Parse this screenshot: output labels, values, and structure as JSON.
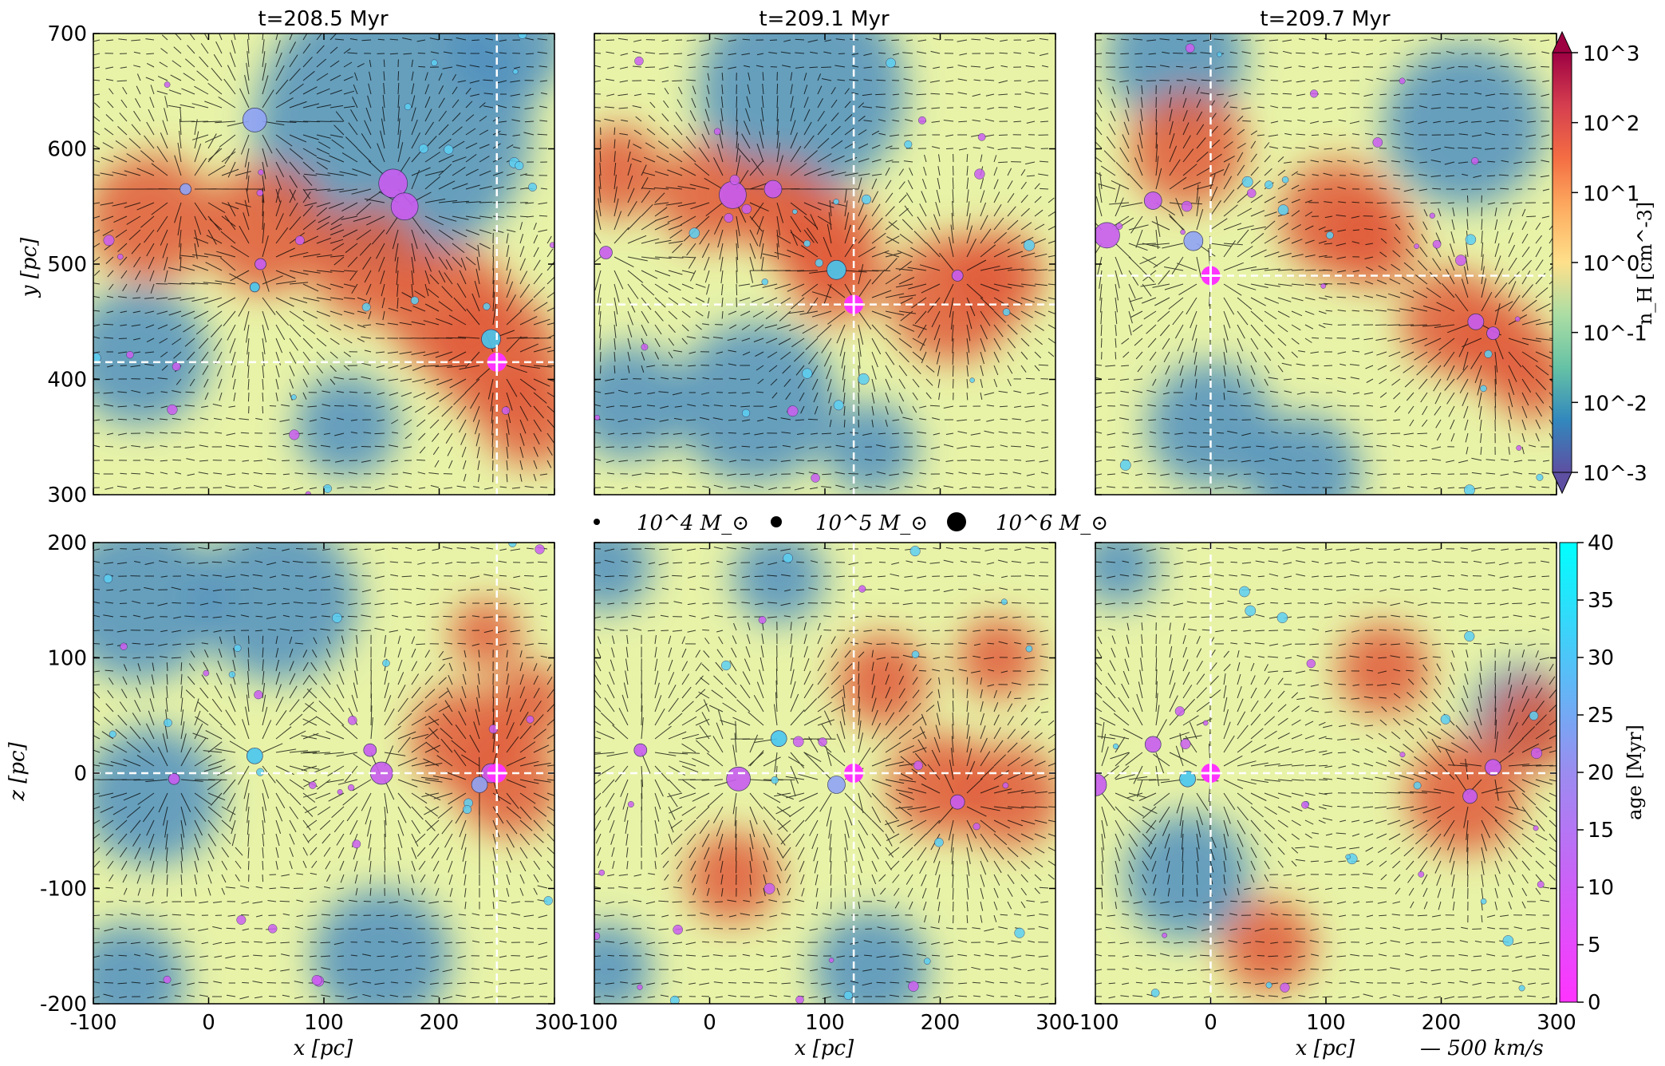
{
  "figure": {
    "panel_titles": [
      "t=208.5 Myr",
      "t=209.1 Myr",
      "t=209.7 Myr"
    ],
    "x_label": "x [pc]",
    "y_label_top": "y [pc]",
    "y_label_bottom": "z [pc]",
    "mass_legend": [
      "10^4 M_⊙",
      "10^5 M_⊙",
      "10^6 M_⊙"
    ],
    "velocity_scale_label": "— 500 km/s",
    "density_colorbar": {
      "label": "n_H [cm^-3]",
      "ticks": [
        "10^-3",
        "10^-2",
        "10^-1",
        "10^0",
        "10^1",
        "10^2",
        "10^3"
      ],
      "colormap": "Spectral_r",
      "colors": [
        "#5e4fa2",
        "#3288bd",
        "#66c2a5",
        "#abdda4",
        "#fee08b",
        "#fdae61",
        "#f46d43",
        "#d53e4f",
        "#9e0142"
      ]
    },
    "age_colorbar": {
      "label": "age [Myr]",
      "ticks": [
        "0",
        "5",
        "10",
        "15",
        "20",
        "25",
        "30",
        "35",
        "40"
      ],
      "colors": [
        "#ff33ff",
        "#00ffff"
      ]
    },
    "top_x_ticks": [
      "-100",
      "0",
      "100",
      "200",
      "300"
    ],
    "top_y_ticks": [
      "300",
      "400",
      "500",
      "600",
      "700"
    ],
    "bottom_y_ticks": [
      "-200",
      "-100",
      "0",
      "100",
      "200"
    ],
    "crosshair_color": "#ffffff"
  },
  "chart_data": [
    {
      "type": "heatmap",
      "row": "top",
      "title": "t=208.5 Myr",
      "xlabel": "x [pc]",
      "ylabel": "y [pc]",
      "xlim": [
        -100,
        300
      ],
      "ylim": [
        300,
        700
      ],
      "crosshair": [
        250,
        415
      ],
      "dense_regions": [
        [
          -50,
          540,
          55
        ],
        [
          50,
          530,
          55
        ],
        [
          140,
          500,
          50
        ],
        [
          210,
          460,
          55
        ],
        [
          250,
          420,
          55
        ],
        [
          280,
          370,
          45
        ]
      ],
      "sparse_regions": [
        [
          160,
          620,
          120
        ],
        [
          -60,
          420,
          60
        ],
        [
          120,
          360,
          45
        ],
        [
          260,
          690,
          50
        ]
      ],
      "clusters": [
        [
          160,
          570,
          30
        ],
        [
          170,
          550,
          28
        ],
        [
          40,
          625,
          24
        ],
        [
          245,
          435,
          18
        ],
        [
          250,
          415,
          14
        ],
        [
          45,
          500,
          8
        ],
        [
          -20,
          565,
          8
        ],
        [
          40,
          480,
          6
        ]
      ]
    },
    {
      "type": "heatmap",
      "row": "top",
      "title": "t=209.1 Myr",
      "xlabel": "x [pc]",
      "ylabel": "",
      "xlim": [
        -100,
        300
      ],
      "ylim": [
        300,
        700
      ],
      "crosshair": [
        125,
        465
      ],
      "dense_regions": [
        [
          -80,
          580,
          40
        ],
        [
          0,
          560,
          45
        ],
        [
          60,
          550,
          40
        ],
        [
          100,
          520,
          45
        ],
        [
          110,
          490,
          40
        ],
        [
          210,
          470,
          55
        ],
        [
          250,
          490,
          40
        ]
      ],
      "sparse_regions": [
        [
          80,
          650,
          90
        ],
        [
          40,
          380,
          70
        ],
        [
          -70,
          380,
          50
        ],
        [
          140,
          340,
          40
        ]
      ],
      "clusters": [
        [
          20,
          560,
          28
        ],
        [
          55,
          565,
          16
        ],
        [
          125,
          465,
          16
        ],
        [
          110,
          495,
          18
        ],
        [
          -90,
          510,
          10
        ],
        [
          215,
          490,
          8
        ]
      ]
    },
    {
      "type": "heatmap",
      "row": "top",
      "title": "t=209.7 Myr",
      "xlabel": "x [pc]",
      "ylabel": "",
      "xlim": [
        -100,
        300
      ],
      "ylim": [
        300,
        700
      ],
      "crosshair": [
        0,
        490
      ],
      "dense_regions": [
        [
          -20,
          600,
          50
        ],
        [
          110,
          540,
          50
        ],
        [
          140,
          520,
          40
        ],
        [
          210,
          450,
          45
        ],
        [
          250,
          430,
          40
        ],
        [
          280,
          400,
          35
        ]
      ],
      "sparse_regions": [
        [
          -30,
          680,
          60
        ],
        [
          220,
          620,
          70
        ],
        [
          0,
          360,
          55
        ],
        [
          80,
          320,
          50
        ]
      ],
      "clusters": [
        [
          -90,
          525,
          26
        ],
        [
          -50,
          555,
          16
        ],
        [
          -15,
          520,
          18
        ],
        [
          0,
          490,
          16
        ],
        [
          230,
          450,
          14
        ],
        [
          245,
          440,
          10
        ]
      ]
    },
    {
      "type": "heatmap",
      "row": "bottom",
      "title": "",
      "xlabel": "x [pc]",
      "ylabel": "z [pc]",
      "xlim": [
        -100,
        300
      ],
      "ylim": [
        -200,
        200
      ],
      "crosshair": [
        250,
        0
      ],
      "dense_regions": [
        [
          220,
          30,
          45
        ],
        [
          260,
          -10,
          45
        ],
        [
          280,
          60,
          35
        ],
        [
          240,
          120,
          30
        ]
      ],
      "sparse_regions": [
        [
          -60,
          150,
          70
        ],
        [
          60,
          150,
          70
        ],
        [
          -50,
          -20,
          60
        ],
        [
          150,
          -160,
          60
        ],
        [
          -70,
          -180,
          50
        ]
      ],
      "clusters": [
        [
          150,
          0,
          22
        ],
        [
          245,
          0,
          18
        ],
        [
          235,
          -10,
          14
        ],
        [
          40,
          15,
          14
        ],
        [
          -30,
          -5,
          8
        ],
        [
          140,
          20,
          10
        ]
      ]
    },
    {
      "type": "heatmap",
      "row": "bottom",
      "title": "",
      "xlabel": "x [pc]",
      "ylabel": "",
      "xlim": [
        -100,
        300
      ],
      "ylim": [
        -200,
        200
      ],
      "crosshair": [
        125,
        0
      ],
      "dense_regions": [
        [
          200,
          -10,
          45
        ],
        [
          260,
          -20,
          45
        ],
        [
          150,
          80,
          40
        ],
        [
          250,
          100,
          35
        ],
        [
          20,
          -90,
          40
        ]
      ],
      "sparse_regions": [
        [
          -90,
          180,
          40
        ],
        [
          140,
          -170,
          50
        ],
        [
          -90,
          -170,
          40
        ],
        [
          60,
          170,
          40
        ]
      ],
      "clusters": [
        [
          25,
          -5,
          24
        ],
        [
          125,
          0,
          16
        ],
        [
          110,
          -10,
          16
        ],
        [
          60,
          30,
          14
        ],
        [
          -60,
          20,
          10
        ],
        [
          215,
          -25,
          12
        ]
      ]
    },
    {
      "type": "heatmap",
      "row": "bottom",
      "title": "",
      "xlabel": "x [pc]",
      "ylabel": "",
      "xlim": [
        -100,
        300
      ],
      "ylim": [
        -200,
        200
      ],
      "crosshair": [
        0,
        0
      ],
      "dense_regions": [
        [
          220,
          -20,
          50
        ],
        [
          280,
          40,
          40
        ],
        [
          150,
          90,
          40
        ],
        [
          50,
          -150,
          40
        ]
      ],
      "sparse_regions": [
        [
          -20,
          -90,
          55
        ],
        [
          270,
          50,
          45
        ],
        [
          -80,
          180,
          35
        ]
      ],
      "clusters": [
        [
          -100,
          -10,
          22
        ],
        [
          -50,
          25,
          14
        ],
        [
          0,
          0,
          16
        ],
        [
          -20,
          -5,
          14
        ],
        [
          225,
          -20,
          12
        ],
        [
          245,
          5,
          14
        ]
      ]
    }
  ]
}
